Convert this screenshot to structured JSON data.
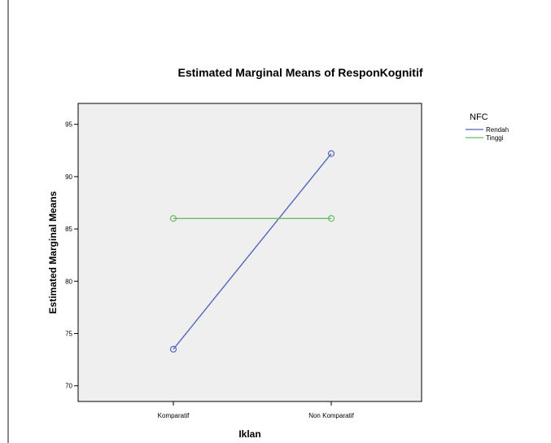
{
  "chart_data": {
    "type": "line",
    "title": "Estimated Marginal Means of ResponKognitif",
    "xlabel": "Iklan",
    "ylabel": "Estimated Marginal Means",
    "categories": [
      "Komparatif",
      "Non Komparatif"
    ],
    "ylim": [
      68.5,
      97
    ],
    "yticks": [
      70,
      75,
      80,
      85,
      90,
      95
    ],
    "grid": false,
    "legend_title": "NFC",
    "legend_position": "right",
    "plot_background": "#efefef",
    "series": [
      {
        "name": "Rendah",
        "values": [
          73.5,
          92.2
        ],
        "color": "#5566bb"
      },
      {
        "name": "Tinggi",
        "values": [
          86.0,
          86.0
        ],
        "color": "#66bb66"
      }
    ]
  }
}
